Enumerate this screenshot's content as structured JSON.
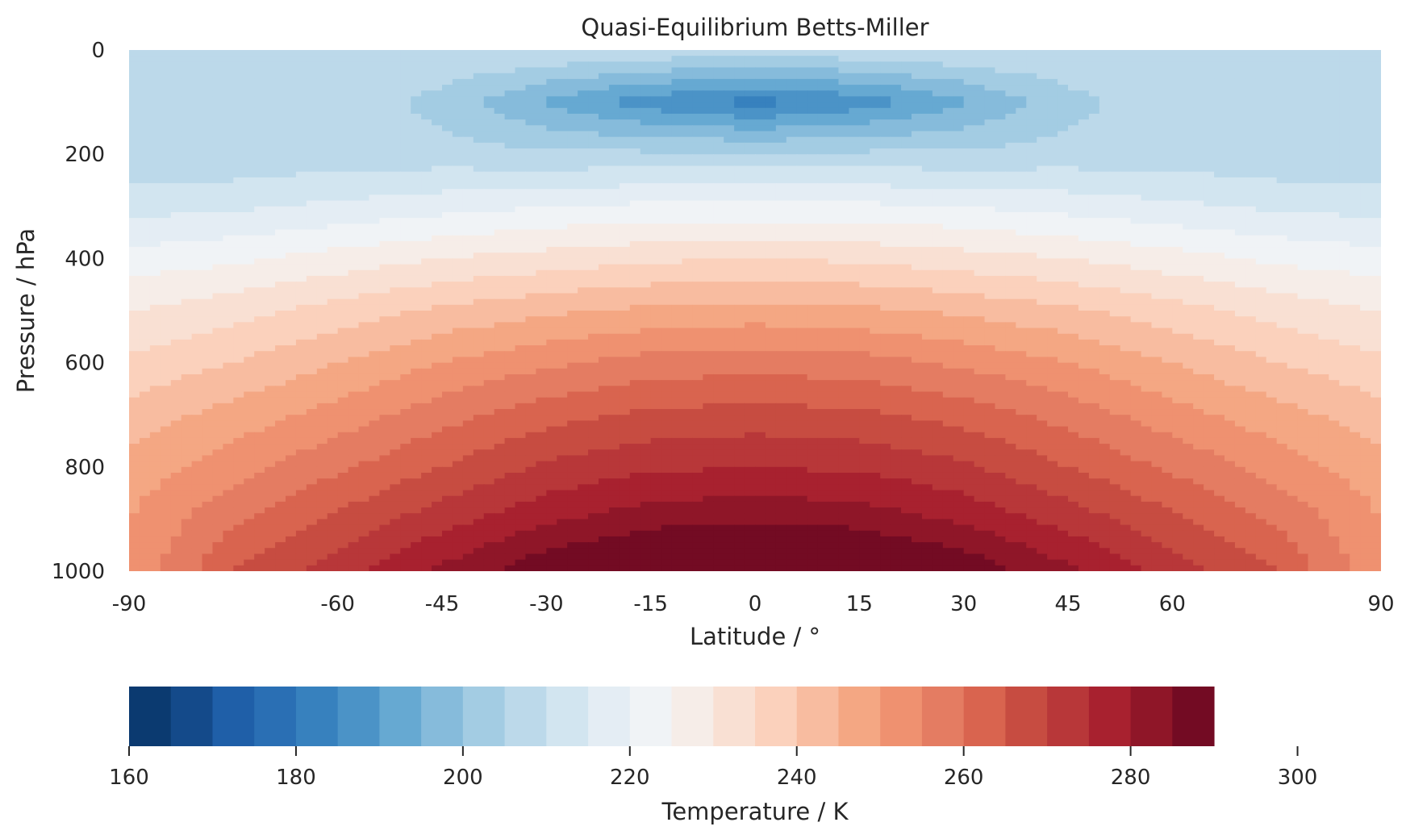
{
  "chart_data": {
    "type": "contourf",
    "title": "Quasi-Equilibrium Betts-Miller",
    "xlabel": "Latitude / °",
    "ylabel": "Pressure / hPa",
    "xlim": [
      -90,
      90
    ],
    "ylim": [
      1000,
      0
    ],
    "y_inverted": true,
    "x_ticks": [
      -90,
      -60,
      -45,
      -30,
      -15,
      0,
      15,
      30,
      45,
      60,
      90
    ],
    "x_tick_labels": [
      "-90",
      "-60",
      "-45",
      "-30",
      "-15",
      "0",
      "15",
      "30",
      "45",
      "60",
      "90"
    ],
    "y_ticks": [
      0,
      200,
      400,
      600,
      800,
      1000
    ],
    "y_tick_labels": [
      "0",
      "200",
      "400",
      "600",
      "800",
      "1000"
    ],
    "grid": false,
    "colorbar": {
      "label": "Temperature / K",
      "orientation": "horizontal",
      "placement": "bottom",
      "cmap": "RdBu_r",
      "range": [
        160,
        310
      ],
      "level_step": 5,
      "ticks": [
        160,
        180,
        200,
        220,
        240,
        260,
        280,
        300
      ],
      "tick_labels": [
        "160",
        "180",
        "200",
        "220",
        "240",
        "260",
        "280",
        "300"
      ],
      "colors": [
        "#0b3a70",
        "#144a8a",
        "#1f5fa8",
        "#2a6fb4",
        "#3781be",
        "#4b93c7",
        "#66a9d2",
        "#86bbdb",
        "#a3cce3",
        "#bcd9ea",
        "#d2e5f0",
        "#e4edf4",
        "#f0f3f6",
        "#f6ede8",
        "#f9e0d3",
        "#fbd1bc",
        "#f8bca0",
        "#f4a783",
        "#ef9170",
        "#e47c62",
        "#d9644f",
        "#c74c41",
        "#b83739",
        "#a8212f",
        "#8f1628",
        "#730b23"
      ]
    },
    "profile_note": "",
    "temperature_samples": {
      "latitudes": [
        -90,
        -75,
        -60,
        -45,
        -30,
        -15,
        0,
        15,
        30,
        45,
        60,
        75,
        90
      ],
      "pressures": [
        0,
        100,
        200,
        300,
        400,
        500,
        600,
        700,
        800,
        900,
        1000
      ],
      "values_K": [
        [
          206,
          209,
          210,
          210,
          210,
          209,
          208,
          209,
          210,
          210,
          210,
          209,
          206
        ],
        [
          210,
          210,
          209,
          203,
          194,
          187,
          183,
          187,
          194,
          203,
          209,
          210,
          210
        ],
        [
          206,
          206,
          207,
          207,
          206,
          206,
          206,
          206,
          206,
          207,
          207,
          206,
          206
        ],
        [
          213,
          214,
          216,
          218,
          220,
          221,
          221,
          221,
          220,
          218,
          216,
          214,
          213
        ],
        [
          222,
          224,
          227,
          230,
          232,
          234,
          235,
          234,
          232,
          230,
          227,
          224,
          222
        ],
        [
          230,
          233,
          237,
          241,
          244,
          246,
          247,
          246,
          244,
          241,
          237,
          233,
          230
        ],
        [
          236,
          240,
          245,
          250,
          254,
          257,
          258,
          257,
          254,
          250,
          245,
          240,
          236
        ],
        [
          242,
          247,
          252,
          258,
          263,
          266,
          267,
          266,
          263,
          258,
          252,
          247,
          242
        ],
        [
          247,
          253,
          259,
          265,
          271,
          274,
          275,
          274,
          271,
          265,
          259,
          253,
          247
        ],
        [
          250,
          259,
          266,
          273,
          279,
          283,
          284,
          283,
          279,
          273,
          266,
          259,
          250
        ],
        [
          251,
          265,
          273,
          281,
          289,
          294,
          296,
          294,
          289,
          281,
          273,
          265,
          251
        ]
      ]
    }
  }
}
